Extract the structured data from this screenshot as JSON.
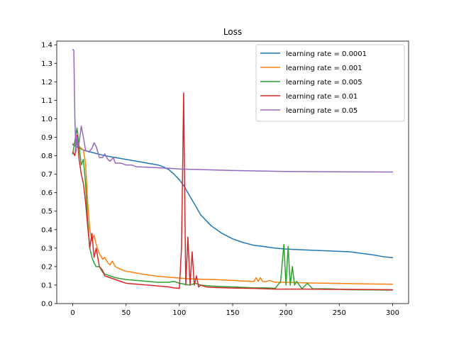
{
  "chart_data": {
    "type": "line",
    "title": "Loss",
    "xlabel": "",
    "ylabel": "",
    "xlim": [
      -15,
      315
    ],
    "ylim": [
      0,
      1.42
    ],
    "xticks": [
      0,
      50,
      100,
      150,
      200,
      250,
      300
    ],
    "yticks": [
      0.0,
      0.1,
      0.2,
      0.3,
      0.4,
      0.5,
      0.6,
      0.7,
      0.8,
      0.9,
      1.0,
      1.1,
      1.2,
      1.3,
      1.4
    ],
    "ytick_labels": [
      "0.0",
      "0.1",
      "0.2",
      "0.3",
      "0.4",
      "0.5",
      "0.6",
      "0.7",
      "0.8",
      "0.9",
      "1.0",
      "1.1",
      "1.2",
      "1.3",
      "1.4"
    ],
    "grid": false,
    "legend_position": "top-right",
    "series": [
      {
        "name": "learning rate = 0.0001",
        "color": "#1f77b4",
        "x": [
          0,
          5,
          10,
          20,
          30,
          40,
          50,
          60,
          70,
          80,
          85,
          90,
          95,
          100,
          105,
          110,
          115,
          120,
          130,
          140,
          150,
          160,
          170,
          180,
          190,
          200,
          220,
          240,
          260,
          280,
          290,
          300
        ],
        "y": [
          0.86,
          0.845,
          0.83,
          0.815,
          0.8,
          0.79,
          0.78,
          0.77,
          0.76,
          0.75,
          0.74,
          0.725,
          0.7,
          0.67,
          0.63,
          0.58,
          0.53,
          0.48,
          0.42,
          0.38,
          0.35,
          0.33,
          0.315,
          0.308,
          0.3,
          0.295,
          0.29,
          0.285,
          0.28,
          0.265,
          0.255,
          0.248
        ]
      },
      {
        "name": "learning rate = 0.001",
        "color": "#ff7f0e",
        "x": [
          0,
          3,
          6,
          10,
          12,
          14,
          16,
          18,
          20,
          22,
          25,
          28,
          30,
          33,
          35,
          37,
          40,
          45,
          50,
          60,
          70,
          80,
          90,
          100,
          110,
          120,
          130,
          140,
          150,
          160,
          170,
          172,
          174,
          176,
          178,
          180,
          185,
          190,
          200,
          220,
          240,
          260,
          280,
          300
        ],
        "y": [
          0.865,
          0.865,
          0.85,
          0.83,
          0.76,
          0.55,
          0.4,
          0.34,
          0.37,
          0.32,
          0.27,
          0.24,
          0.25,
          0.22,
          0.21,
          0.23,
          0.2,
          0.185,
          0.175,
          0.165,
          0.155,
          0.148,
          0.142,
          0.138,
          0.134,
          0.132,
          0.13,
          0.128,
          0.125,
          0.122,
          0.12,
          0.14,
          0.12,
          0.14,
          0.12,
          0.118,
          0.125,
          0.115,
          0.115,
          0.112,
          0.11,
          0.108,
          0.106,
          0.105
        ]
      },
      {
        "name": "learning rate = 0.005",
        "color": "#2ca02c",
        "x": [
          0,
          2,
          4,
          6,
          8,
          10,
          12,
          14,
          16,
          18,
          20,
          22,
          25,
          28,
          30,
          35,
          40,
          45,
          50,
          60,
          70,
          80,
          90,
          95,
          100,
          105,
          110,
          115,
          120,
          130,
          140,
          150,
          160,
          170,
          180,
          190,
          195,
          198,
          200,
          202,
          204,
          206,
          208,
          210,
          215,
          220,
          225,
          230,
          240,
          260,
          280,
          300
        ],
        "y": [
          0.81,
          0.88,
          0.95,
          0.85,
          0.75,
          0.78,
          0.65,
          0.45,
          0.3,
          0.25,
          0.22,
          0.2,
          0.2,
          0.17,
          0.16,
          0.15,
          0.14,
          0.135,
          0.13,
          0.125,
          0.12,
          0.115,
          0.115,
          0.12,
          0.11,
          0.105,
          0.1,
          0.11,
          0.1,
          0.095,
          0.092,
          0.09,
          0.088,
          0.085,
          0.085,
          0.083,
          0.12,
          0.32,
          0.1,
          0.31,
          0.1,
          0.2,
          0.1,
          0.12,
          0.08,
          0.11,
          0.08,
          0.08,
          0.08,
          0.075,
          0.074,
          0.073
        ]
      },
      {
        "name": "learning rate = 0.01",
        "color": "#d62728",
        "x": [
          0,
          2,
          4,
          6,
          8,
          10,
          12,
          14,
          16,
          18,
          20,
          22,
          25,
          28,
          30,
          35,
          40,
          45,
          50,
          60,
          70,
          80,
          90,
          95,
          100,
          102,
          103,
          104,
          105,
          106,
          108,
          110,
          112,
          114,
          116,
          118,
          120,
          125,
          130,
          140,
          150,
          160,
          170,
          180,
          190,
          200,
          220,
          240,
          260,
          280,
          300
        ],
        "y": [
          0.82,
          0.8,
          0.91,
          0.78,
          0.7,
          0.65,
          0.55,
          0.42,
          0.3,
          0.38,
          0.25,
          0.3,
          0.2,
          0.18,
          0.15,
          0.14,
          0.13,
          0.12,
          0.11,
          0.105,
          0.1,
          0.095,
          0.09,
          0.085,
          0.082,
          0.3,
          0.7,
          1.14,
          0.6,
          0.1,
          0.36,
          0.1,
          0.28,
          0.1,
          0.15,
          0.09,
          0.1,
          0.09,
          0.088,
          0.086,
          0.084,
          0.083,
          0.082,
          0.08,
          0.078,
          0.078,
          0.078,
          0.077,
          0.077,
          0.076,
          0.075
        ]
      },
      {
        "name": "learning rate = 0.05",
        "color": "#9467bd",
        "x": [
          0,
          1,
          2,
          3,
          4,
          5,
          6,
          8,
          10,
          12,
          15,
          18,
          20,
          22,
          25,
          28,
          30,
          33,
          35,
          38,
          40,
          45,
          50,
          55,
          60,
          70,
          80,
          90,
          100,
          120,
          150,
          200,
          250,
          300
        ],
        "y": [
          1.375,
          1.37,
          1.0,
          0.82,
          0.9,
          0.85,
          0.87,
          0.96,
          0.9,
          0.83,
          0.82,
          0.84,
          0.87,
          0.85,
          0.79,
          0.79,
          0.81,
          0.78,
          0.77,
          0.79,
          0.76,
          0.76,
          0.75,
          0.75,
          0.74,
          0.738,
          0.735,
          0.732,
          0.728,
          0.725,
          0.72,
          0.715,
          0.713,
          0.712
        ]
      }
    ]
  }
}
